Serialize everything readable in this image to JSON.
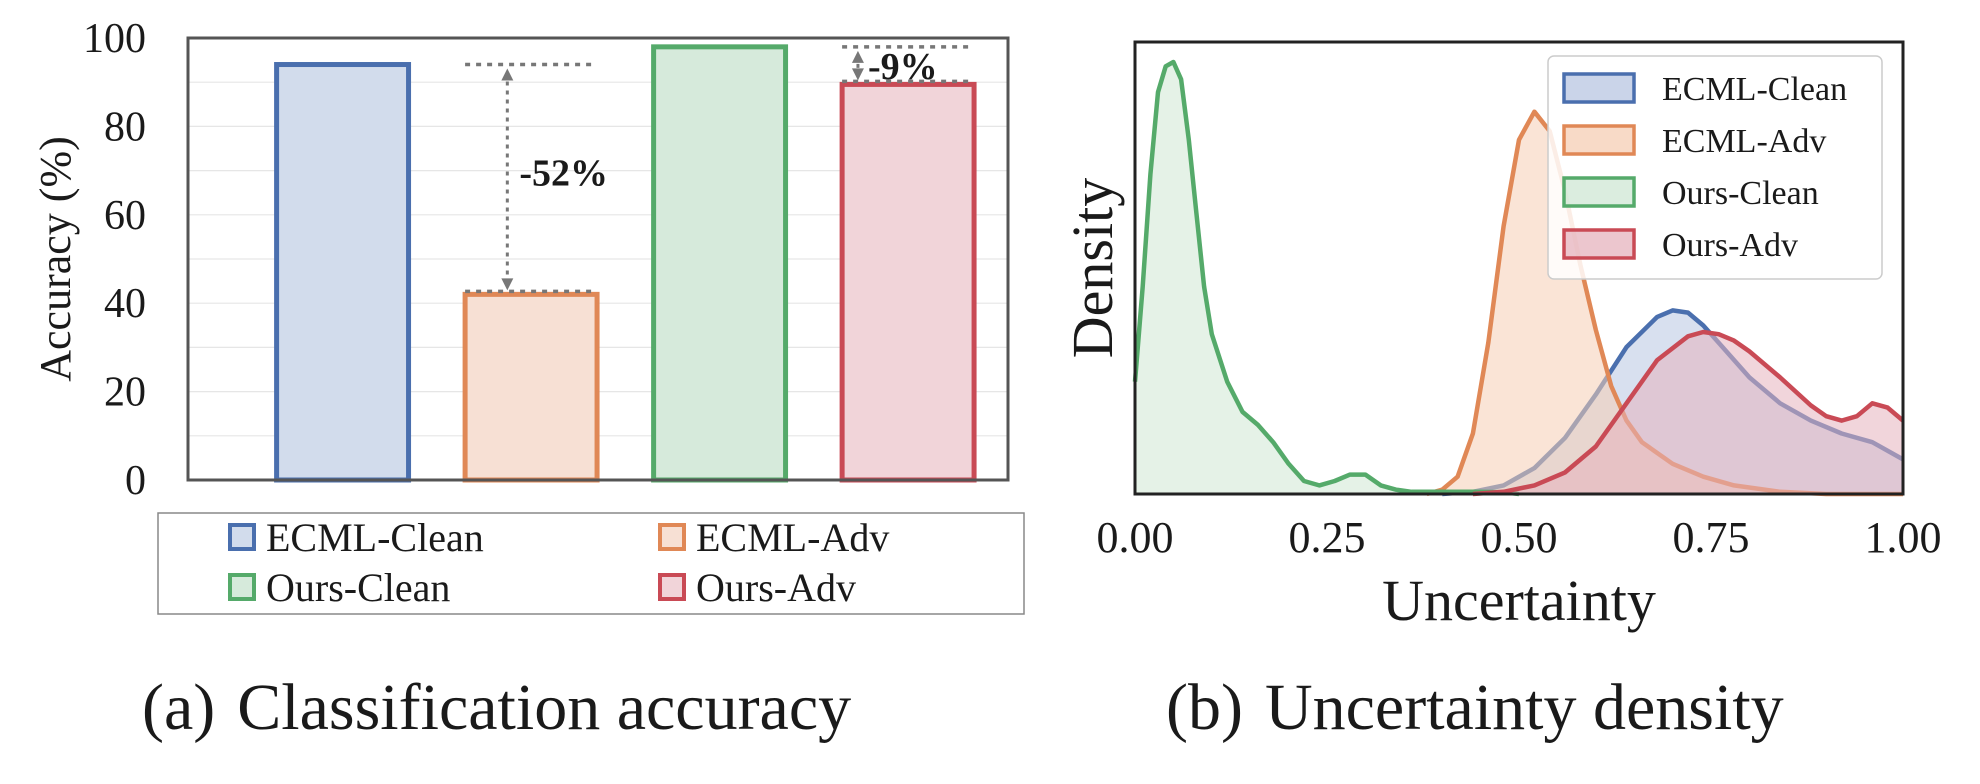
{
  "chart_data": [
    {
      "id": "a",
      "type": "bar",
      "caption_tag": "(a)",
      "caption": "Classification accuracy",
      "categories": [
        "ECML-Clean",
        "ECML-Adv",
        "Ours-Clean",
        "Ours-Adv"
      ],
      "values": [
        94,
        42,
        98,
        89.5
      ],
      "colors": {
        "ECML-Clean": {
          "fill": "#d2dcec",
          "stroke": "#4a6fae"
        },
        "ECML-Adv": {
          "fill": "#f7e0d4",
          "stroke": "#e08856"
        },
        "Ours-Clean": {
          "fill": "#d6eadb",
          "stroke": "#55aa6a"
        },
        "Ours-Adv": {
          "fill": "#f1d4d9",
          "stroke": "#c94a55"
        }
      },
      "ylabel": "Accuracy (%)",
      "ylim": [
        0,
        100
      ],
      "yticks": [
        "0",
        "20",
        "40",
        "60",
        "80",
        "100"
      ],
      "grid": true,
      "legend": {
        "position": "bottom",
        "entries": [
          "ECML-Clean",
          "ECML-Adv",
          "Ours-Clean",
          "Ours-Adv"
        ]
      },
      "annotations": [
        {
          "text": "-52%",
          "from_category": "ECML-Clean",
          "to_category": "ECML-Adv",
          "color": "#b01010"
        },
        {
          "text": "-9%",
          "from_category": "Ours-Clean",
          "to_category": "Ours-Adv",
          "color": "#b01010"
        }
      ]
    },
    {
      "id": "b",
      "type": "area",
      "caption_tag": "(b)",
      "caption": "Uncertainty density",
      "xlabel": "Uncertainty",
      "ylabel": "Density",
      "xlim": [
        0,
        1
      ],
      "xticks": [
        "0.00",
        "0.25",
        "0.50",
        "0.75",
        "1.00"
      ],
      "ylim": [
        0,
        1
      ],
      "legend": {
        "position": "top-right",
        "entries": [
          "ECML-Clean",
          "ECML-Adv",
          "Ours-Clean",
          "Ours-Adv"
        ]
      },
      "series": [
        {
          "name": "ECML-Clean",
          "color": "#4a6fae",
          "fill": "#b8c6e2",
          "x": [
            0.4,
            0.44,
            0.48,
            0.52,
            0.56,
            0.6,
            0.64,
            0.68,
            0.7,
            0.72,
            0.74,
            0.76,
            0.8,
            0.84,
            0.88,
            0.92,
            0.96,
            1.0
          ],
          "y": [
            0.0,
            0.005,
            0.02,
            0.06,
            0.13,
            0.23,
            0.34,
            0.41,
            0.425,
            0.42,
            0.39,
            0.35,
            0.27,
            0.21,
            0.17,
            0.14,
            0.12,
            0.08
          ]
        },
        {
          "name": "ECML-Adv",
          "color": "#e08856",
          "fill": "#f5cdb4",
          "x": [
            0.38,
            0.4,
            0.42,
            0.44,
            0.46,
            0.48,
            0.5,
            0.52,
            0.54,
            0.56,
            0.58,
            0.6,
            0.62,
            0.64,
            0.66,
            0.7,
            0.74,
            0.78,
            0.84,
            0.9,
            1.0
          ],
          "y": [
            0.0,
            0.01,
            0.04,
            0.14,
            0.35,
            0.62,
            0.82,
            0.885,
            0.84,
            0.7,
            0.53,
            0.38,
            0.25,
            0.17,
            0.12,
            0.07,
            0.04,
            0.02,
            0.005,
            0.0,
            0.0
          ]
        },
        {
          "name": "Ours-Clean",
          "color": "#55aa6a",
          "fill": "#cfe7d4",
          "x": [
            0.0,
            0.01,
            0.02,
            0.03,
            0.04,
            0.05,
            0.06,
            0.07,
            0.08,
            0.09,
            0.1,
            0.12,
            0.14,
            0.16,
            0.18,
            0.2,
            0.22,
            0.24,
            0.26,
            0.28,
            0.3,
            0.32,
            0.34,
            0.36,
            0.38,
            0.4,
            0.44,
            0.48,
            0.5
          ],
          "y": [
            0.26,
            0.48,
            0.74,
            0.93,
            0.99,
            1.0,
            0.96,
            0.82,
            0.65,
            0.48,
            0.37,
            0.26,
            0.19,
            0.16,
            0.12,
            0.07,
            0.03,
            0.02,
            0.03,
            0.045,
            0.045,
            0.02,
            0.01,
            0.005,
            0.005,
            0.005,
            0.005,
            0.004,
            0.0
          ]
        },
        {
          "name": "Ours-Adv",
          "color": "#c94a55",
          "fill": "#e6b3bd",
          "x": [
            0.44,
            0.48,
            0.52,
            0.56,
            0.6,
            0.64,
            0.68,
            0.72,
            0.74,
            0.76,
            0.78,
            0.8,
            0.84,
            0.88,
            0.9,
            0.92,
            0.94,
            0.96,
            0.98,
            1.0
          ],
          "y": [
            0.0,
            0.005,
            0.02,
            0.05,
            0.11,
            0.21,
            0.31,
            0.365,
            0.375,
            0.37,
            0.355,
            0.33,
            0.27,
            0.205,
            0.18,
            0.17,
            0.18,
            0.21,
            0.2,
            0.17
          ]
        }
      ]
    }
  ]
}
